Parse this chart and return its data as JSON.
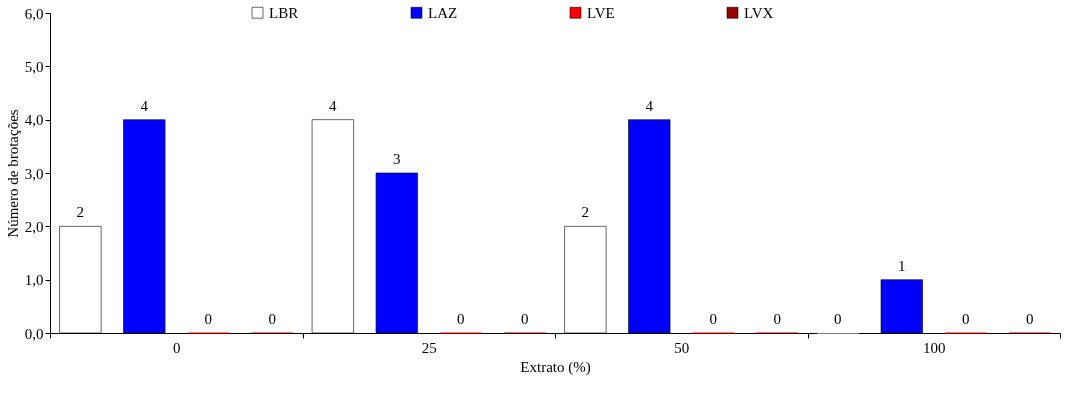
{
  "chart_data": {
    "type": "bar",
    "xlabel": "Extrato (%)",
    "ylabel": "Número de brotações",
    "categories": [
      "0",
      "25",
      "50",
      "100"
    ],
    "series": [
      {
        "name": "LBR",
        "color": "#ffffff",
        "values": [
          2,
          4,
          2,
          0
        ]
      },
      {
        "name": "LAZ",
        "color": "#0000ff",
        "values": [
          4,
          3,
          4,
          1
        ]
      },
      {
        "name": "LVE",
        "color": "#ff0000",
        "values": [
          0,
          0,
          0,
          0
        ]
      },
      {
        "name": "LVX",
        "color": "#990000",
        "values": [
          0,
          0,
          0,
          0
        ]
      }
    ],
    "ylim": [
      0,
      6
    ],
    "yticks": [
      {
        "value": 0,
        "label": "0,0"
      },
      {
        "value": 1,
        "label": "1,0"
      },
      {
        "value": 2,
        "label": "2,0"
      },
      {
        "value": 3,
        "label": "3,0"
      },
      {
        "value": 4,
        "label": "4,0"
      },
      {
        "value": 5,
        "label": "5,0"
      },
      {
        "value": 6,
        "label": "6,0"
      }
    ],
    "data_labels": true,
    "legend": "top",
    "grid": false
  }
}
